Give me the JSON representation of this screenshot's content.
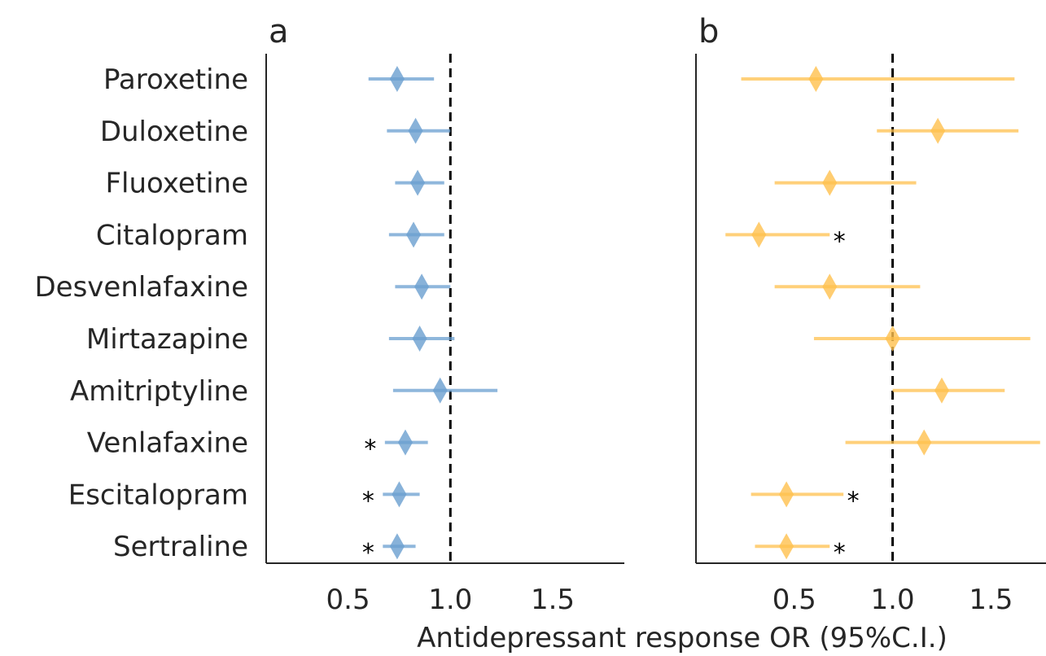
{
  "chart_data": [
    {
      "type": "forest",
      "panel_label": "a",
      "categories": [
        "Paroxetine",
        "Duloxetine",
        "Fluoxetine",
        "Citalopram",
        "Desvenlafaxine",
        "Mirtazapine",
        "Amitriptyline",
        "Venlafaxine",
        "Escitalopram",
        "Sertraline"
      ],
      "or": [
        0.74,
        0.83,
        0.84,
        0.82,
        0.86,
        0.85,
        0.95,
        0.78,
        0.75,
        0.74
      ],
      "ci_low": [
        0.6,
        0.69,
        0.73,
        0.7,
        0.73,
        0.7,
        0.72,
        0.68,
        0.67,
        0.67
      ],
      "ci_high": [
        0.92,
        1.0,
        0.97,
        0.97,
        1.0,
        1.02,
        1.23,
        0.89,
        0.85,
        0.83
      ],
      "significant": [
        false,
        false,
        false,
        false,
        false,
        false,
        false,
        true,
        true,
        true
      ],
      "marker": "*",
      "reference_line": 1.0,
      "xlim": [
        0.1,
        1.85
      ],
      "xticks": [
        "0.5",
        "1.0",
        "1.5"
      ],
      "color": "#6a9fd0"
    },
    {
      "type": "forest",
      "panel_label": "b",
      "categories": [
        "Paroxetine",
        "Duloxetine",
        "Fluoxetine",
        "Citalopram",
        "Desvenlafaxine",
        "Mirtazapine",
        "Amitriptyline",
        "Venlafaxine",
        "Escitalopram",
        "Sertraline"
      ],
      "or": [
        0.61,
        1.23,
        0.68,
        0.32,
        0.68,
        1.0,
        1.25,
        1.16,
        0.46,
        0.46
      ],
      "ci_low": [
        0.23,
        0.92,
        0.4,
        0.15,
        0.4,
        0.6,
        1.0,
        0.76,
        0.28,
        0.3
      ],
      "ci_high": [
        1.62,
        1.64,
        1.12,
        0.68,
        1.14,
        1.7,
        1.57,
        1.75,
        0.75,
        0.68
      ],
      "significant": [
        false,
        false,
        false,
        true,
        false,
        false,
        false,
        false,
        true,
        true
      ],
      "marker": "*",
      "reference_line": 1.0,
      "xlim": [
        0.0,
        1.78
      ],
      "xticks": [
        "0.5",
        "1.0",
        "1.5"
      ],
      "color": "#ffc04d"
    }
  ],
  "xlabel": "Antidepressant response OR (95%C.I.)"
}
